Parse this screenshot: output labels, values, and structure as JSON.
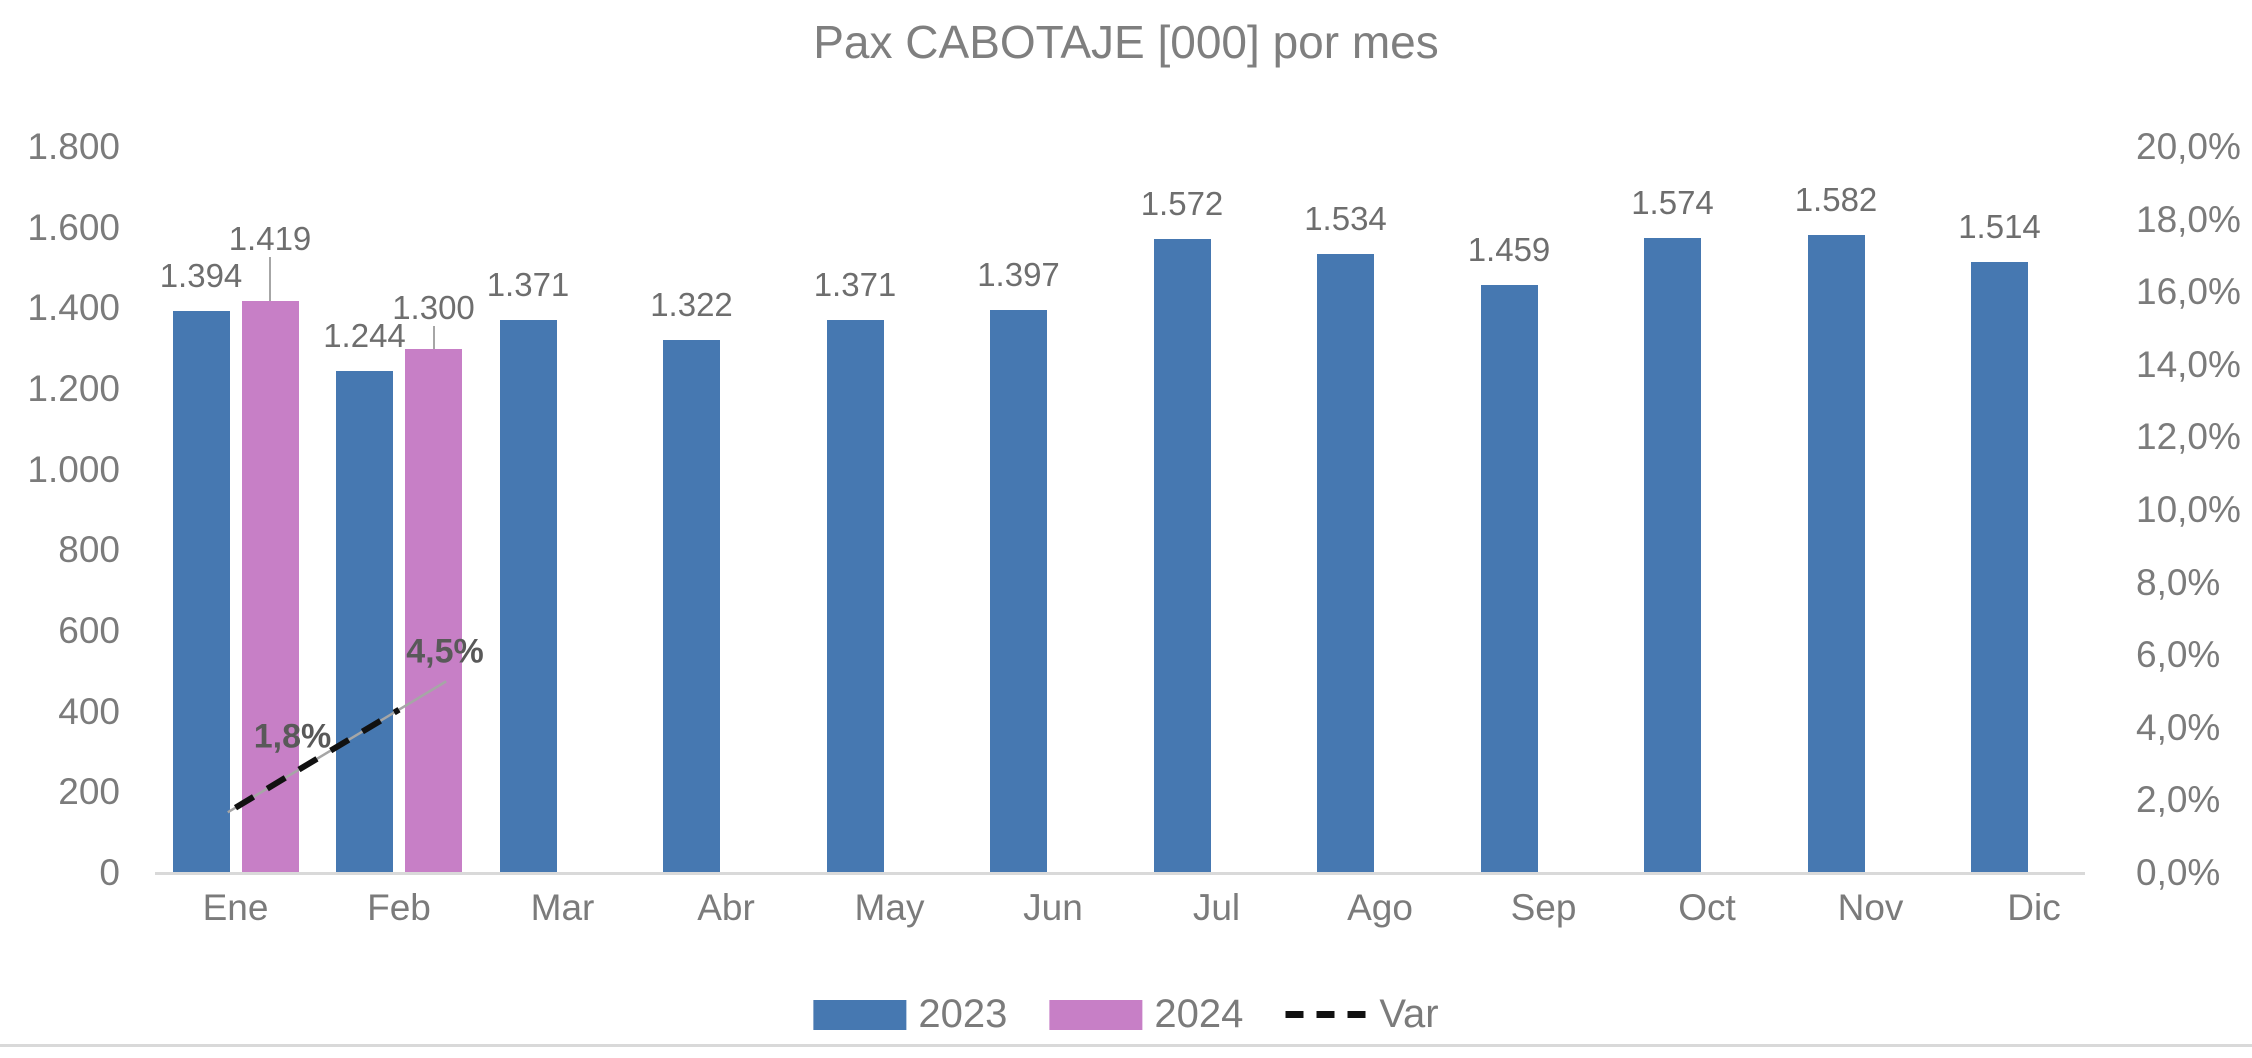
{
  "title": "Pax CABOTAJE [000] por mes",
  "colors": {
    "series_2023": "#4678b1",
    "series_2024": "#c77fc6",
    "var_line": "#111111",
    "trend_gray": "#a6a6a6",
    "axis_text": "#7b7b7b",
    "axis_line": "#d9d9d9"
  },
  "chart_data": {
    "type": "bar",
    "title": "Pax CABOTAJE [000] por mes",
    "categories": [
      "Ene",
      "Feb",
      "Mar",
      "Abr",
      "May",
      "Jun",
      "Jul",
      "Ago",
      "Sep",
      "Oct",
      "Nov",
      "Dic"
    ],
    "series": [
      {
        "name": "2023",
        "type": "bar",
        "color": "#4678b1",
        "values": [
          1394,
          1244,
          1371,
          1322,
          1371,
          1397,
          1572,
          1534,
          1459,
          1574,
          1582,
          1514
        ],
        "labels": [
          "1.394",
          "1.244",
          "1.371",
          "1.322",
          "1.371",
          "1.397",
          "1.572",
          "1.534",
          "1.459",
          "1.574",
          "1.582",
          "1.514"
        ]
      },
      {
        "name": "2024",
        "type": "bar",
        "color": "#c77fc6",
        "values": [
          1419,
          1300,
          null,
          null,
          null,
          null,
          null,
          null,
          null,
          null,
          null,
          null
        ],
        "labels": [
          "1.419",
          "1.300",
          null,
          null,
          null,
          null,
          null,
          null,
          null,
          null,
          null,
          null
        ]
      },
      {
        "name": "Var",
        "type": "line-dashed",
        "axis": "right",
        "color": "#111111",
        "values": [
          1.8,
          4.5,
          null,
          null,
          null,
          null,
          null,
          null,
          null,
          null,
          null,
          null
        ],
        "labels": [
          "1,8%",
          "4,5%",
          null,
          null,
          null,
          null,
          null,
          null,
          null,
          null,
          null,
          null
        ]
      }
    ],
    "left_axis": {
      "min": 0,
      "max": 1800,
      "step": 200,
      "ticks": [
        "1.800",
        "1.600",
        "1.400",
        "1.200",
        "1.000",
        "800",
        "600",
        "400",
        "200",
        "0"
      ]
    },
    "right_axis": {
      "min": 0,
      "max": 20,
      "step": 2,
      "ticks": [
        "20,0%",
        "18,0%",
        "16,0%",
        "14,0%",
        "12,0%",
        "10,0%",
        "8,0%",
        "6,0%",
        "4,0%",
        "2,0%",
        "0,0%"
      ]
    },
    "grid": "off",
    "legend_position": "bottom"
  }
}
